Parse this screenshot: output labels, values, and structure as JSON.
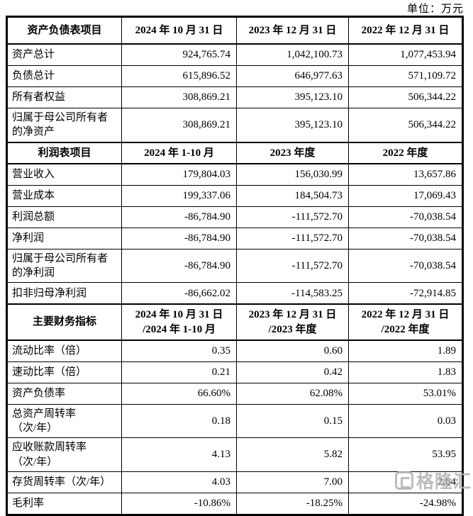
{
  "page": {
    "unit_label": "单位：万元"
  },
  "watermark": {
    "text": "格隆汇"
  },
  "table": {
    "rows": [
      {
        "type": "section",
        "cells": [
          "资产负债表项目",
          "2024 年 10 月 31 日",
          "2023 年 12 月 31 日",
          "2022 年 12 月 31 日"
        ]
      },
      {
        "type": "data",
        "cells": [
          "资产总计",
          "924,765.74",
          "1,042,100.73",
          "1,077,453.94"
        ]
      },
      {
        "type": "data",
        "cells": [
          "负债总计",
          "615,896.52",
          "646,977.63",
          "571,109.72"
        ]
      },
      {
        "type": "data",
        "cells": [
          "所有者权益",
          "308,869.21",
          "395,123.10",
          "506,344.22"
        ]
      },
      {
        "type": "data",
        "cells": [
          "归属于母公司所有者\n的净资产",
          "308,869.21",
          "395,123.10",
          "506,344.22"
        ]
      },
      {
        "type": "section",
        "cells": [
          "利润表项目",
          "2024 年 1-10 月",
          "2023 年度",
          "2022 年度"
        ]
      },
      {
        "type": "data",
        "cells": [
          "营业收入",
          "179,804.03",
          "156,030.99",
          "13,657.86"
        ]
      },
      {
        "type": "data",
        "cells": [
          "营业成本",
          "199,337.06",
          "184,504.73",
          "17,069.43"
        ]
      },
      {
        "type": "data",
        "cells": [
          "利润总额",
          "-86,784.90",
          "-111,572.70",
          "-70,038.54"
        ]
      },
      {
        "type": "data",
        "cells": [
          "净利润",
          "-86,784.90",
          "-111,572.70",
          "-70,038.54"
        ]
      },
      {
        "type": "data",
        "cells": [
          "归属于母公司所有者\n的净利润",
          "-86,784.90",
          "-111,572.70",
          "-70,038.54"
        ]
      },
      {
        "type": "data",
        "cells": [
          "扣非归母净利润",
          "-86,662.02",
          "-114,583.25",
          "-72,914.85"
        ]
      },
      {
        "type": "section",
        "cells": [
          "主要财务指标",
          "2024 年 10 月 31 日\n/2024 年 1-10 月",
          "2023 年 12 月 31 日\n/2023 年度",
          "2022 年 12 月 31 日\n/2022 年度"
        ]
      },
      {
        "type": "data",
        "cells": [
          "流动比率（倍）",
          "0.35",
          "0.60",
          "1.89"
        ]
      },
      {
        "type": "data",
        "cells": [
          "速动比率（倍）",
          "0.21",
          "0.42",
          "1.83"
        ]
      },
      {
        "type": "data",
        "cells": [
          "资产负债率",
          "66.60%",
          "62.08%",
          "53.01%"
        ]
      },
      {
        "type": "data",
        "cells": [
          "总资产周转率\n（次/年）",
          "0.18",
          "0.15",
          "0.03"
        ]
      },
      {
        "type": "data",
        "cells": [
          "应收账款周转率\n（次/年）",
          "4.13",
          "5.82",
          "53.95"
        ]
      },
      {
        "type": "data",
        "cells": [
          "存货周转率（次/年）",
          "4.03",
          "7.00",
          "2.64"
        ]
      },
      {
        "type": "data",
        "cells": [
          "毛利率",
          "-10.86%",
          "-18.25%",
          "-24.98%"
        ]
      }
    ]
  }
}
